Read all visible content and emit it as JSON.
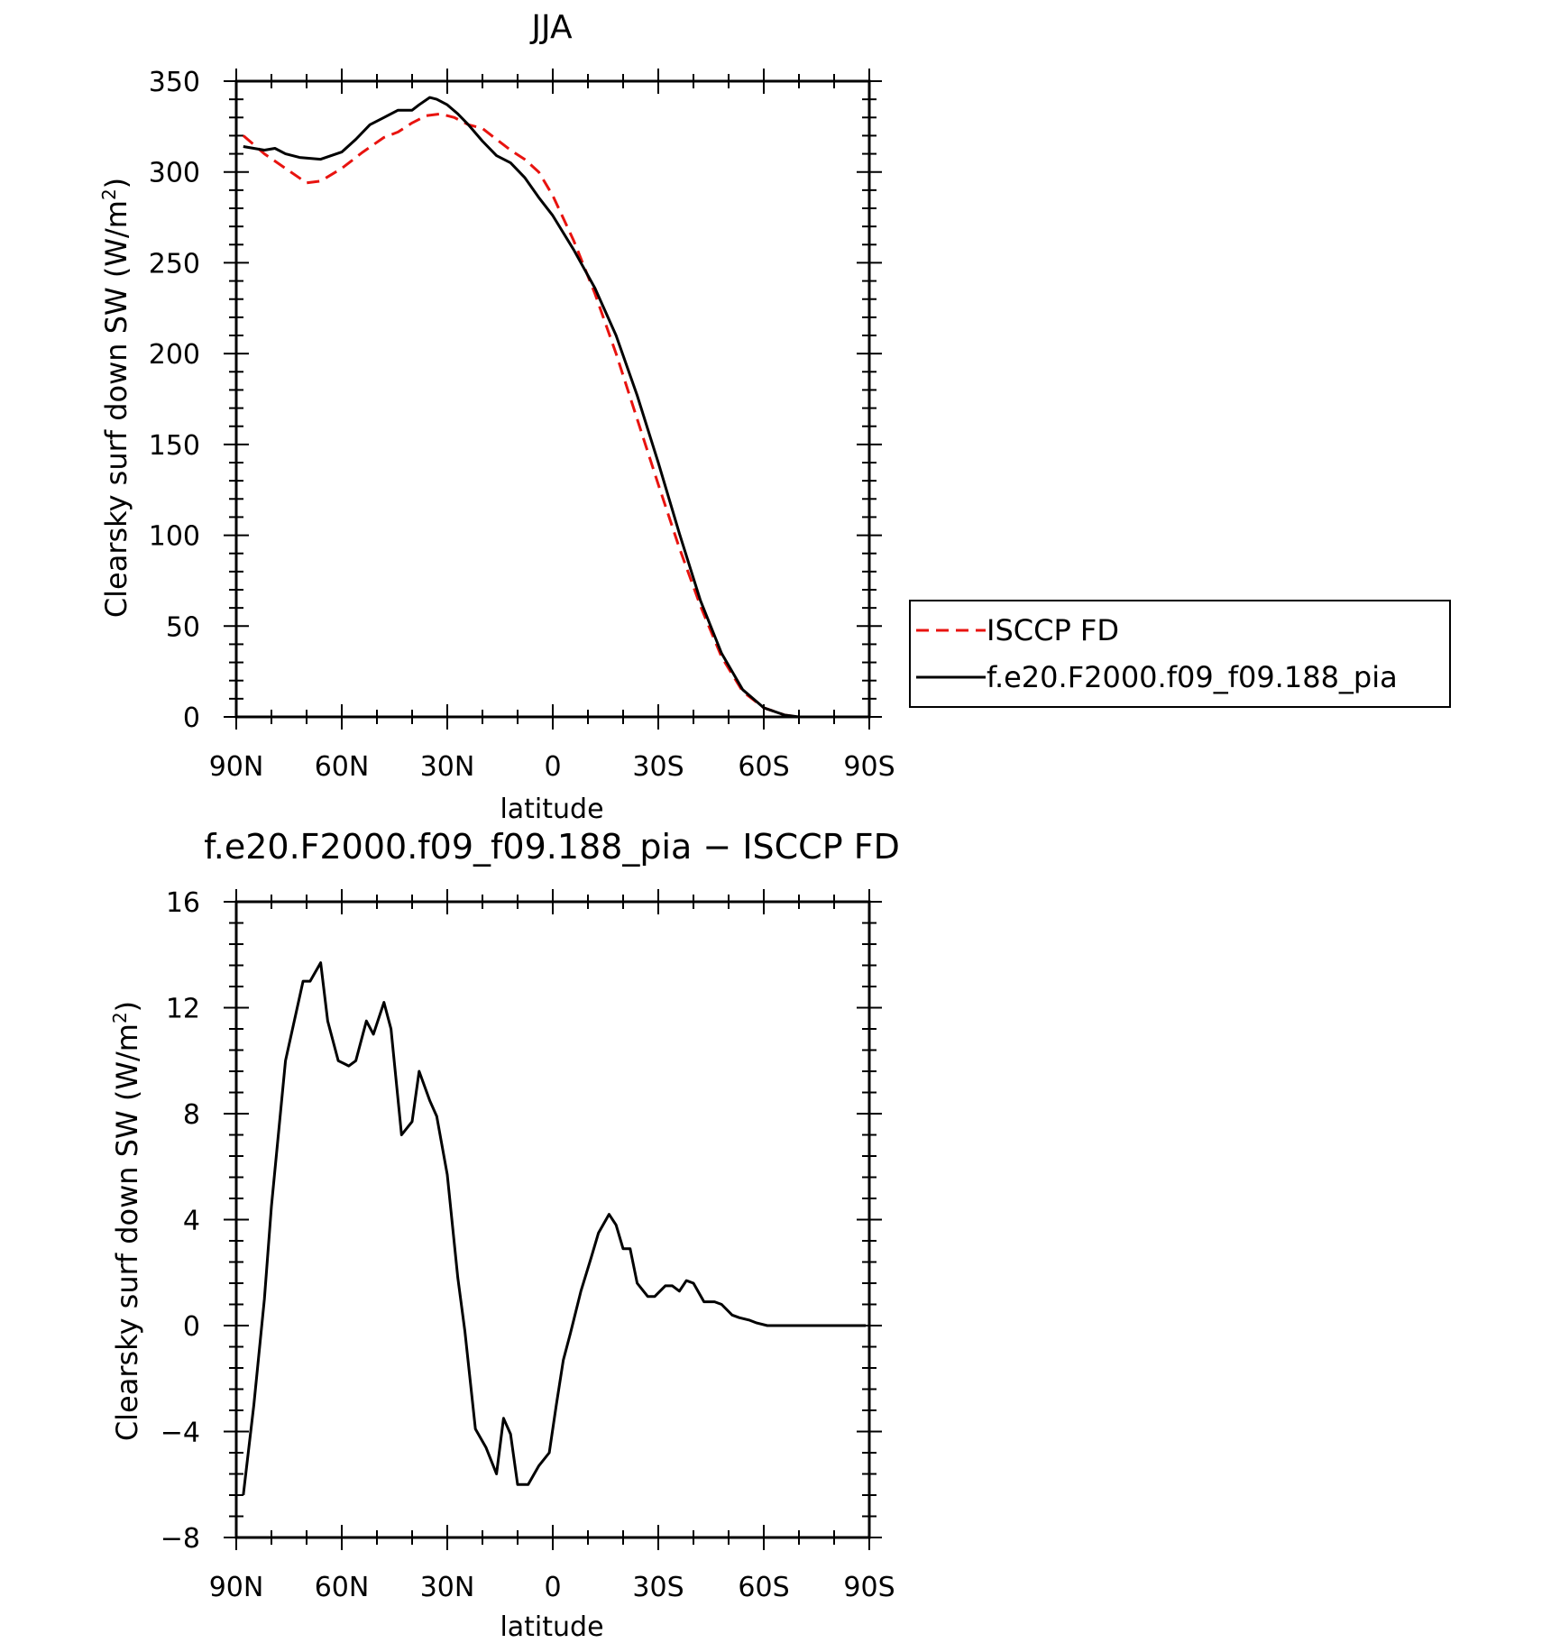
{
  "chart_data": [
    {
      "type": "line",
      "title": "JJA",
      "xlabel": "latitude",
      "ylabel": "Clearsky surf down SW (W/m",
      "ylabel_sup": "2",
      "ylabel_close": ")",
      "xlim": [
        90,
        -90
      ],
      "ylim": [
        0,
        350
      ],
      "xticks": [
        90,
        60,
        30,
        0,
        -30,
        -60,
        -90
      ],
      "xtick_labels": [
        "90N",
        "60N",
        "30N",
        "0",
        "30S",
        "60S",
        "90S"
      ],
      "yticks": [
        0,
        50,
        100,
        150,
        200,
        250,
        300,
        350
      ],
      "ytick_labels": [
        "0",
        "50",
        "100",
        "150",
        "200",
        "250",
        "300",
        "350"
      ],
      "legend_position": "right",
      "series": [
        {
          "name": "ISCCP FD",
          "color": "#e8130f",
          "dash": "dashed",
          "x": [
            88,
            82,
            76,
            70,
            66,
            60,
            54,
            48,
            44,
            40,
            36,
            32,
            28,
            24,
            20,
            16,
            12,
            8,
            4,
            0,
            -6,
            -12,
            -18,
            -24,
            -30,
            -36,
            -42,
            -48,
            -54,
            -60,
            -66,
            -70,
            -74,
            -78,
            -82,
            -86,
            -89
          ],
          "y": [
            320,
            310,
            302,
            294,
            295,
            302,
            311,
            319,
            322,
            327,
            331,
            332,
            330,
            326,
            324,
            318,
            312,
            307,
            300,
            287,
            262,
            233,
            200,
            164,
            128,
            93,
            61,
            33,
            14,
            5,
            1,
            0,
            0,
            0,
            0,
            0,
            0
          ]
        },
        {
          "name": "f.e20.F2000.f09_f09.188_pia",
          "color": "#000000",
          "dash": "solid",
          "x": [
            88,
            82,
            79,
            76,
            72,
            66,
            60,
            56,
            52,
            48,
            44,
            40,
            38,
            35,
            33,
            30,
            27,
            24,
            20,
            16,
            12,
            8,
            4,
            0,
            -6,
            -12,
            -18,
            -24,
            -30,
            -36,
            -42,
            -48,
            -54,
            -60,
            -66,
            -70,
            -74,
            -78,
            -82,
            -86,
            -89
          ],
          "y": [
            314,
            312,
            313,
            310,
            308,
            307,
            311,
            318,
            326,
            330,
            334,
            334,
            337,
            341,
            340,
            337,
            332,
            326,
            317,
            309,
            305,
            297,
            286,
            276,
            257,
            236,
            210,
            177,
            140,
            101,
            64,
            35,
            15,
            5,
            1,
            0,
            0,
            0,
            0,
            0,
            0
          ]
        }
      ]
    },
    {
      "type": "line",
      "title": "f.e20.F2000.f09_f09.188_pia − ISCCP FD",
      "xlabel": "latitude",
      "ylabel": "Clearsky surf down SW (W/m",
      "ylabel_sup": "2",
      "ylabel_close": ")",
      "xlim": [
        90,
        -90
      ],
      "ylim": [
        -8,
        16
      ],
      "xticks": [
        90,
        60,
        30,
        0,
        -30,
        -60,
        -90
      ],
      "xtick_labels": [
        "90N",
        "60N",
        "30N",
        "0",
        "30S",
        "60S",
        "90S"
      ],
      "yticks": [
        -8,
        -4,
        0,
        4,
        8,
        12,
        16
      ],
      "ytick_labels": [
        "−8",
        "−4",
        "0",
        "4",
        "8",
        "12",
        "16"
      ],
      "series": [
        {
          "color": "#000000",
          "dash": "solid",
          "x": [
            88,
            85,
            82,
            80,
            76,
            71,
            69,
            66,
            64,
            61,
            58,
            56,
            53,
            51,
            48,
            46,
            43,
            40,
            38,
            35,
            33,
            30,
            27,
            25,
            22,
            19,
            16,
            14,
            12,
            10,
            7,
            4,
            1,
            -1,
            -3,
            -5,
            -8,
            -11,
            -13,
            -16,
            -18,
            -20,
            -22,
            -24,
            -27,
            -29,
            -32,
            -34,
            -36,
            -38,
            -40,
            -43,
            -46,
            -48,
            -51,
            -53,
            -56,
            -58,
            -61,
            -64,
            -66,
            -69,
            -72,
            -75,
            -77,
            -80,
            -82,
            -86,
            -89
          ],
          "y": [
            -6.4,
            -3.0,
            1.0,
            4.5,
            10.0,
            13.0,
            13.0,
            13.7,
            11.5,
            10.0,
            9.8,
            10.0,
            11.5,
            11.0,
            12.2,
            11.2,
            7.2,
            7.7,
            9.6,
            8.5,
            7.9,
            5.7,
            1.8,
            -0.2,
            -3.9,
            -4.6,
            -5.6,
            -3.5,
            -4.1,
            -6.0,
            -6.0,
            -5.3,
            -4.8,
            -3.0,
            -1.3,
            -0.3,
            1.3,
            2.6,
            3.5,
            4.2,
            3.8,
            2.9,
            2.9,
            1.6,
            1.1,
            1.1,
            1.5,
            1.5,
            1.3,
            1.7,
            1.6,
            0.9,
            0.9,
            0.8,
            0.4,
            0.3,
            0.2,
            0.1,
            0.0,
            0.0,
            0.0,
            0.0,
            0.0,
            0.0,
            0.0,
            0.0,
            0.0,
            0.0,
            0.0
          ]
        }
      ]
    }
  ]
}
